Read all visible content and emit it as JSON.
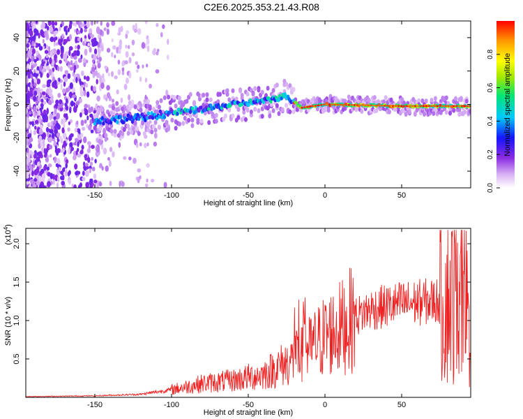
{
  "title": "C2E6.2025.353.21.43.R08",
  "chart_data": [
    {
      "type": "heatmap",
      "name": "spectrogram",
      "xlabel": "Height of straight line (km)",
      "ylabel": "Frequency (Hz)",
      "xlim": [
        -195,
        95
      ],
      "ylim": [
        -50,
        50
      ],
      "x_ticks": [
        -150,
        -100,
        -50,
        0,
        50
      ],
      "x_tick_labels": [
        "-150",
        "-100",
        "-50",
        "0",
        "50"
      ],
      "y_ticks": [
        -40,
        -20,
        0,
        20,
        40
      ],
      "y_tick_labels": [
        "-40",
        "-20",
        "0",
        "20",
        "40"
      ],
      "ridge": {
        "x": [
          -150,
          -120,
          -100,
          -80,
          -60,
          -40,
          -25,
          -15,
          0,
          50,
          95
        ],
        "y": [
          -10,
          -8,
          -5,
          -3,
          0,
          2,
          5,
          -2,
          0,
          -1,
          -1
        ]
      },
      "colorbar": {
        "label": "Normalized spectral amplitude",
        "range": [
          0.0,
          1.0
        ],
        "ticks": [
          0.0,
          0.2,
          0.4,
          0.6,
          0.8
        ],
        "tick_labels": [
          "0.0",
          "0.2",
          "0.4",
          "0.6",
          "0.8"
        ]
      }
    },
    {
      "type": "line",
      "name": "snr",
      "xlabel": "Height of straight line (km)",
      "ylabel": "SNR (10 * v/v)",
      "scale_label": "(x10",
      "scale_exp": "4",
      "xlim": [
        -195,
        95
      ],
      "ylim": [
        0,
        2.2
      ],
      "x_ticks": [
        -150,
        -100,
        -50,
        0,
        50
      ],
      "x_tick_labels": [
        "-150",
        "-100",
        "-50",
        "0",
        "50"
      ],
      "y_ticks": [
        0.5,
        1.0,
        1.5,
        2.0
      ],
      "y_tick_labels": [
        "0.5",
        "1.0",
        "1.5",
        "2.0"
      ],
      "color": "#ee2222",
      "envelope": {
        "x": [
          -195,
          -150,
          -120,
          -100,
          -80,
          -60,
          -40,
          -25,
          -15,
          0,
          10,
          20,
          30,
          50,
          70,
          85,
          95
        ],
        "y": [
          0.01,
          0.02,
          0.04,
          0.1,
          0.18,
          0.22,
          0.3,
          0.45,
          0.55,
          0.8,
          0.9,
          1.05,
          1.15,
          1.22,
          1.25,
          1.3,
          1.2
        ]
      }
    }
  ]
}
